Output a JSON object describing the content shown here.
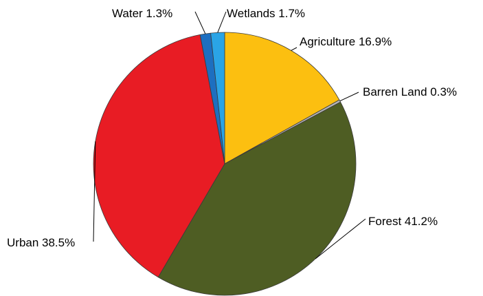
{
  "chart_data": {
    "type": "pie",
    "start_angle_deg": 0,
    "direction": "clockwise",
    "slices": [
      {
        "name": "Agriculture",
        "value": 16.9,
        "label": "Agriculture 16.9%",
        "color": "#fcbf10"
      },
      {
        "name": "Barren Land",
        "value": 0.3,
        "label": "Barren Land 0.3%",
        "color": "#b4b4b4"
      },
      {
        "name": "Forest",
        "value": 41.2,
        "label": "Forest 41.2%",
        "color": "#4e5d23"
      },
      {
        "name": "Urban",
        "value": 38.5,
        "label": "Urban 38.5%",
        "color": "#e81c24"
      },
      {
        "name": "Water",
        "value": 1.3,
        "label": "Water 1.3%",
        "color": "#1d6fc0"
      },
      {
        "name": "Wetlands",
        "value": 1.7,
        "label": "Wetlands 1.7%",
        "color": "#2aa4e6"
      }
    ]
  }
}
